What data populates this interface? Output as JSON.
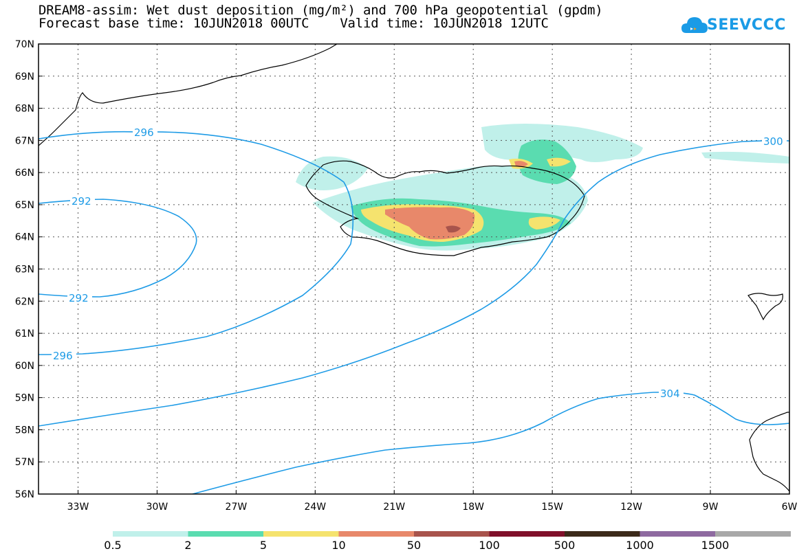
{
  "title": {
    "line1": "DREAM8-assim: Wet dust deposition (mg/m²) and 700 hPa geopotential (gpdm)",
    "line2": "Forecast base time: 10JUN2018 00UTC    Valid time: 10JUN2018 12UTC"
  },
  "logo": {
    "text": "SEEVCCC",
    "icon": "cloud-icon"
  },
  "axes": {
    "lat_ticks": [
      "70N",
      "69N",
      "68N",
      "67N",
      "66N",
      "65N",
      "64N",
      "63N",
      "62N",
      "61N",
      "60N",
      "59N",
      "58N",
      "57N",
      "56N"
    ],
    "lon_ticks": [
      "33W",
      "30W",
      "27W",
      "24W",
      "21W",
      "18W",
      "15W",
      "12W",
      "9W",
      "6W"
    ],
    "lat_range": [
      56,
      70
    ],
    "lon_range": [
      -34.5,
      -6
    ]
  },
  "contours": {
    "color": "#1e9be6",
    "labels": [
      "296",
      "292",
      "292",
      "296",
      "300",
      "304"
    ]
  },
  "legend": {
    "bins": [
      {
        "label": "0.5",
        "color": "#c0f0ea"
      },
      {
        "label": "2",
        "color": "#5adcb0"
      },
      {
        "label": "5",
        "color": "#f5e36e"
      },
      {
        "label": "10",
        "color": "#e8886a"
      },
      {
        "label": "50",
        "color": "#a8544c"
      },
      {
        "label": "100",
        "color": "#80102a"
      },
      {
        "label": "500",
        "color": "#3c2a1a"
      },
      {
        "label": "1000",
        "color": "#8e6aa0"
      },
      {
        "label": "1500",
        "color": "#a8a8a8"
      }
    ]
  }
}
